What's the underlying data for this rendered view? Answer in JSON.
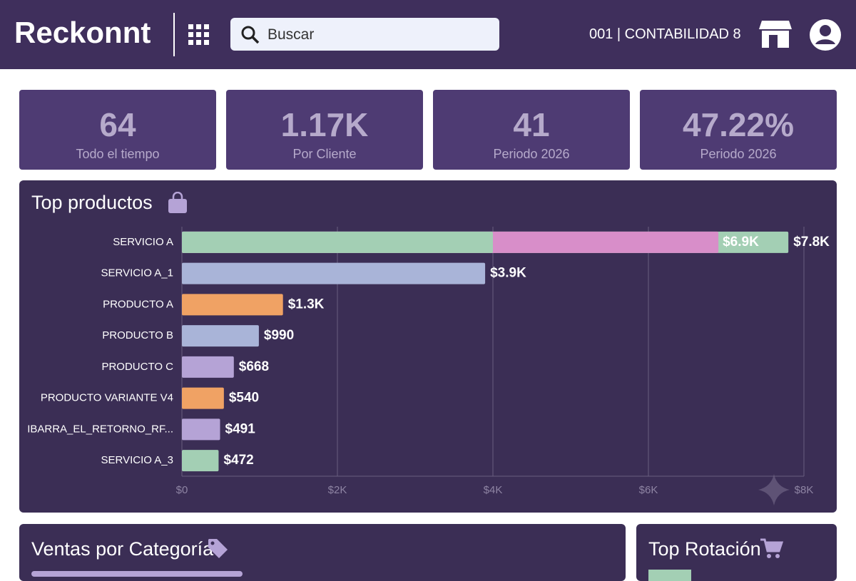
{
  "header": {
    "brand": "Reckonnt",
    "search_placeholder": "Buscar",
    "company": "001 | CONTABILIDAD 8"
  },
  "kpis": [
    {
      "value": "64",
      "label": "Todo el tiempo"
    },
    {
      "value": "1.17K",
      "label": "Por Cliente"
    },
    {
      "value": "41",
      "label": "Periodo 2026"
    },
    {
      "value": "47.22%",
      "label": "Periodo 2026"
    }
  ],
  "chart_data": {
    "type": "bar",
    "orientation": "horizontal",
    "title": "Top productos",
    "categories": [
      "SERVICIO A",
      "SERVICIO A_1",
      "PRODUCTO A",
      "PRODUCTO B",
      "PRODUCTO C",
      "PRODUCTO VARIANTE V4",
      "IBARRA_EL_RETORNO_RF...",
      "SERVICIO A_3"
    ],
    "values": [
      7800,
      3900,
      1300,
      990,
      668,
      540,
      491,
      472
    ],
    "value_labels": [
      "$7.8K",
      "$3.9K",
      "$1.3K",
      "$990",
      "$668",
      "$540",
      "$491",
      "$472"
    ],
    "colors": [
      "#a3cfb4",
      "#a9b4d8",
      "#f0a264",
      "#a9b4d8",
      "#b5a3d6",
      "#f0a264",
      "#b5a3d6",
      "#a3cfb4"
    ],
    "layers": [
      {
        "index": 0,
        "value": 6900,
        "value_label": "$6.9K",
        "color": "#d88ec9"
      },
      {
        "index": 0,
        "value": 4000,
        "color": "#a3cfb4"
      }
    ],
    "xlim": [
      0,
      8000
    ],
    "xticks": [
      {
        "value": 0,
        "label": "$0"
      },
      {
        "value": 2000,
        "label": "$2K"
      },
      {
        "value": 4000,
        "label": "$4K"
      },
      {
        "value": 6000,
        "label": "$6K"
      },
      {
        "value": 8000,
        "label": "$8K"
      }
    ],
    "grid": true
  },
  "panels": {
    "categories_title": "Ventas por Categoría",
    "rotation_title": "Top Rotación"
  }
}
